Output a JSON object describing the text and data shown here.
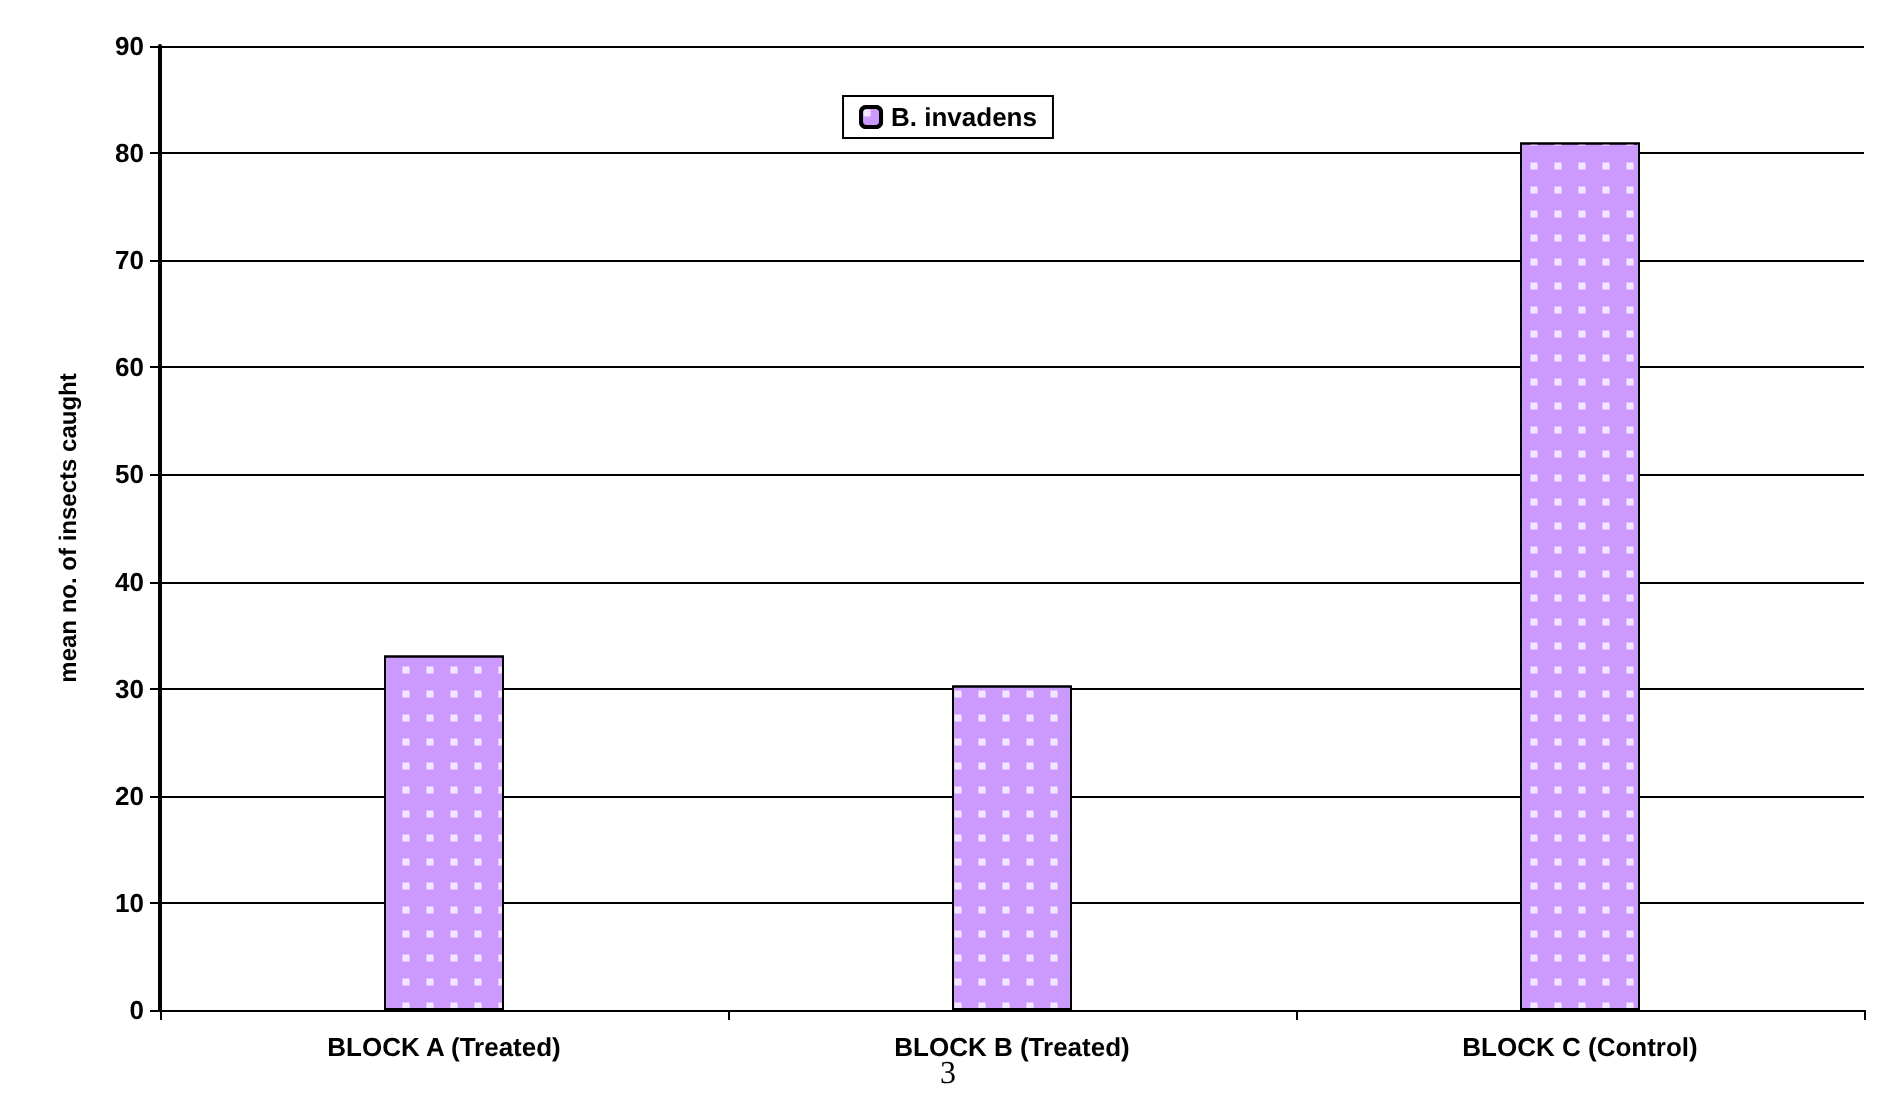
{
  "chart_data": {
    "type": "bar",
    "ylabel": "mean no. of insects caught",
    "categories": [
      "BLOCK A (Treated)",
      "BLOCK B (Treated)",
      "BLOCK C (Control)"
    ],
    "series": [
      {
        "name": "B. invadens",
        "color": "#cc99ff",
        "values": [
          33.1,
          30.3,
          81
        ]
      }
    ],
    "ylim": [
      0,
      90
    ],
    "yticks": [
      0,
      10,
      20,
      30,
      40,
      50,
      60,
      70,
      80,
      90
    ],
    "grid": "y",
    "legend": "top",
    "annotations": [
      "3"
    ]
  }
}
